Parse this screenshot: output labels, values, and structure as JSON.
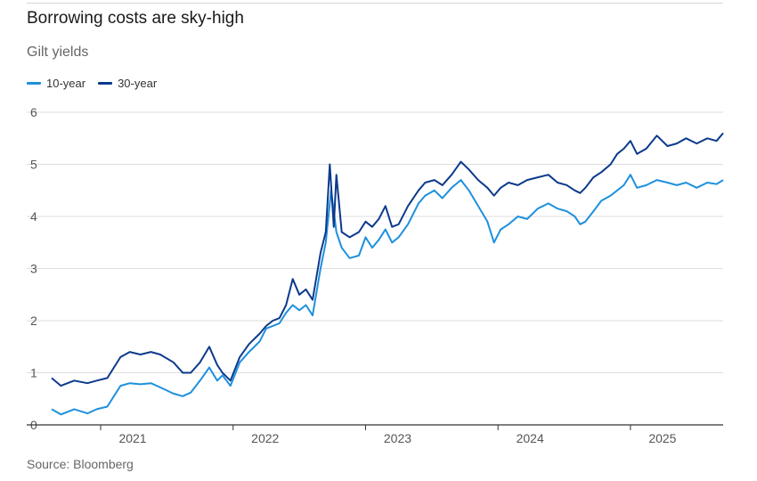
{
  "title": "Borrowing costs are sky-high",
  "subtitle": "Gilt yields",
  "source": "Source: Bloomberg",
  "colors": {
    "ten_year": "#1e90dd",
    "thirty_year": "#0c3a8c",
    "grid": "#dedede",
    "axis": "#333333"
  },
  "chart_data": {
    "type": "line",
    "title": "Borrowing costs are sky-high",
    "subtitle": "Gilt yields",
    "xlabel": "",
    "ylabel": "",
    "xlim": [
      2020.63,
      2025.7
    ],
    "ylim": [
      0,
      6
    ],
    "yticks": [
      "0",
      "1",
      "2",
      "3",
      "4",
      "5",
      "6"
    ],
    "xticks": [
      {
        "label": "2021",
        "x": 2021.0
      },
      {
        "label": "2022",
        "x": 2022.0
      },
      {
        "label": "2023",
        "x": 2023.0
      },
      {
        "label": "2024",
        "x": 2024.0
      },
      {
        "label": "2025",
        "x": 2025.0
      }
    ],
    "grid": true,
    "legend_position": "top-left",
    "series": [
      {
        "name": "10-year",
        "color": "#1e90dd",
        "points": [
          [
            2020.63,
            0.3
          ],
          [
            2020.7,
            0.2
          ],
          [
            2020.8,
            0.3
          ],
          [
            2020.9,
            0.22
          ],
          [
            2020.97,
            0.3
          ],
          [
            2021.05,
            0.35
          ],
          [
            2021.1,
            0.55
          ],
          [
            2021.15,
            0.75
          ],
          [
            2021.22,
            0.8
          ],
          [
            2021.3,
            0.78
          ],
          [
            2021.38,
            0.8
          ],
          [
            2021.45,
            0.72
          ],
          [
            2021.55,
            0.6
          ],
          [
            2021.62,
            0.55
          ],
          [
            2021.68,
            0.62
          ],
          [
            2021.75,
            0.85
          ],
          [
            2021.82,
            1.1
          ],
          [
            2021.88,
            0.85
          ],
          [
            2021.92,
            0.95
          ],
          [
            2021.98,
            0.75
          ],
          [
            2022.05,
            1.2
          ],
          [
            2022.12,
            1.4
          ],
          [
            2022.2,
            1.6
          ],
          [
            2022.25,
            1.85
          ],
          [
            2022.3,
            1.9
          ],
          [
            2022.35,
            1.95
          ],
          [
            2022.4,
            2.15
          ],
          [
            2022.45,
            2.3
          ],
          [
            2022.5,
            2.2
          ],
          [
            2022.55,
            2.3
          ],
          [
            2022.6,
            2.1
          ],
          [
            2022.66,
            3.0
          ],
          [
            2022.7,
            3.5
          ],
          [
            2022.74,
            4.5
          ],
          [
            2022.78,
            3.7
          ],
          [
            2022.82,
            3.4
          ],
          [
            2022.88,
            3.2
          ],
          [
            2022.95,
            3.25
          ],
          [
            2023.0,
            3.6
          ],
          [
            2023.05,
            3.4
          ],
          [
            2023.1,
            3.55
          ],
          [
            2023.15,
            3.75
          ],
          [
            2023.2,
            3.5
          ],
          [
            2023.25,
            3.6
          ],
          [
            2023.32,
            3.85
          ],
          [
            2023.4,
            4.25
          ],
          [
            2023.45,
            4.4
          ],
          [
            2023.52,
            4.5
          ],
          [
            2023.58,
            4.35
          ],
          [
            2023.65,
            4.55
          ],
          [
            2023.72,
            4.7
          ],
          [
            2023.78,
            4.5
          ],
          [
            2023.85,
            4.2
          ],
          [
            2023.92,
            3.9
          ],
          [
            2023.97,
            3.5
          ],
          [
            2024.02,
            3.75
          ],
          [
            2024.08,
            3.85
          ],
          [
            2024.15,
            4.0
          ],
          [
            2024.22,
            3.95
          ],
          [
            2024.3,
            4.15
          ],
          [
            2024.38,
            4.25
          ],
          [
            2024.45,
            4.15
          ],
          [
            2024.52,
            4.1
          ],
          [
            2024.58,
            4.0
          ],
          [
            2024.62,
            3.85
          ],
          [
            2024.66,
            3.9
          ],
          [
            2024.72,
            4.1
          ],
          [
            2024.78,
            4.3
          ],
          [
            2024.85,
            4.4
          ],
          [
            2024.9,
            4.5
          ],
          [
            2024.95,
            4.6
          ],
          [
            2025.0,
            4.8
          ],
          [
            2025.05,
            4.55
          ],
          [
            2025.12,
            4.6
          ],
          [
            2025.2,
            4.7
          ],
          [
            2025.28,
            4.65
          ],
          [
            2025.35,
            4.6
          ],
          [
            2025.42,
            4.65
          ],
          [
            2025.5,
            4.55
          ],
          [
            2025.58,
            4.65
          ],
          [
            2025.65,
            4.62
          ],
          [
            2025.7,
            4.7
          ]
        ]
      },
      {
        "name": "30-year",
        "color": "#0c3a8c",
        "points": [
          [
            2020.63,
            0.9
          ],
          [
            2020.7,
            0.75
          ],
          [
            2020.8,
            0.85
          ],
          [
            2020.9,
            0.8
          ],
          [
            2020.97,
            0.85
          ],
          [
            2021.05,
            0.9
          ],
          [
            2021.1,
            1.1
          ],
          [
            2021.15,
            1.3
          ],
          [
            2021.22,
            1.4
          ],
          [
            2021.3,
            1.35
          ],
          [
            2021.38,
            1.4
          ],
          [
            2021.45,
            1.35
          ],
          [
            2021.55,
            1.2
          ],
          [
            2021.62,
            1.0
          ],
          [
            2021.68,
            1.0
          ],
          [
            2021.75,
            1.2
          ],
          [
            2021.82,
            1.5
          ],
          [
            2021.88,
            1.15
          ],
          [
            2021.92,
            1.0
          ],
          [
            2021.98,
            0.85
          ],
          [
            2022.05,
            1.3
          ],
          [
            2022.12,
            1.55
          ],
          [
            2022.2,
            1.75
          ],
          [
            2022.25,
            1.9
          ],
          [
            2022.3,
            2.0
          ],
          [
            2022.35,
            2.05
          ],
          [
            2022.4,
            2.3
          ],
          [
            2022.45,
            2.8
          ],
          [
            2022.5,
            2.5
          ],
          [
            2022.55,
            2.6
          ],
          [
            2022.6,
            2.4
          ],
          [
            2022.66,
            3.3
          ],
          [
            2022.7,
            3.7
          ],
          [
            2022.73,
            5.0
          ],
          [
            2022.76,
            3.8
          ],
          [
            2022.78,
            4.8
          ],
          [
            2022.82,
            3.7
          ],
          [
            2022.88,
            3.6
          ],
          [
            2022.95,
            3.7
          ],
          [
            2023.0,
            3.9
          ],
          [
            2023.05,
            3.8
          ],
          [
            2023.1,
            3.95
          ],
          [
            2023.15,
            4.2
          ],
          [
            2023.2,
            3.8
          ],
          [
            2023.25,
            3.85
          ],
          [
            2023.32,
            4.2
          ],
          [
            2023.4,
            4.5
          ],
          [
            2023.45,
            4.65
          ],
          [
            2023.52,
            4.7
          ],
          [
            2023.58,
            4.6
          ],
          [
            2023.65,
            4.8
          ],
          [
            2023.72,
            5.05
          ],
          [
            2023.78,
            4.9
          ],
          [
            2023.85,
            4.7
          ],
          [
            2023.92,
            4.55
          ],
          [
            2023.97,
            4.4
          ],
          [
            2024.02,
            4.55
          ],
          [
            2024.08,
            4.65
          ],
          [
            2024.15,
            4.6
          ],
          [
            2024.22,
            4.7
          ],
          [
            2024.3,
            4.75
          ],
          [
            2024.38,
            4.8
          ],
          [
            2024.45,
            4.65
          ],
          [
            2024.52,
            4.6
          ],
          [
            2024.58,
            4.5
          ],
          [
            2024.62,
            4.45
          ],
          [
            2024.66,
            4.55
          ],
          [
            2024.72,
            4.75
          ],
          [
            2024.78,
            4.85
          ],
          [
            2024.85,
            5.0
          ],
          [
            2024.9,
            5.2
          ],
          [
            2024.95,
            5.3
          ],
          [
            2025.0,
            5.45
          ],
          [
            2025.05,
            5.2
          ],
          [
            2025.12,
            5.3
          ],
          [
            2025.2,
            5.55
          ],
          [
            2025.28,
            5.35
          ],
          [
            2025.35,
            5.4
          ],
          [
            2025.42,
            5.5
          ],
          [
            2025.5,
            5.4
          ],
          [
            2025.58,
            5.5
          ],
          [
            2025.65,
            5.45
          ],
          [
            2025.7,
            5.6
          ]
        ]
      }
    ]
  }
}
